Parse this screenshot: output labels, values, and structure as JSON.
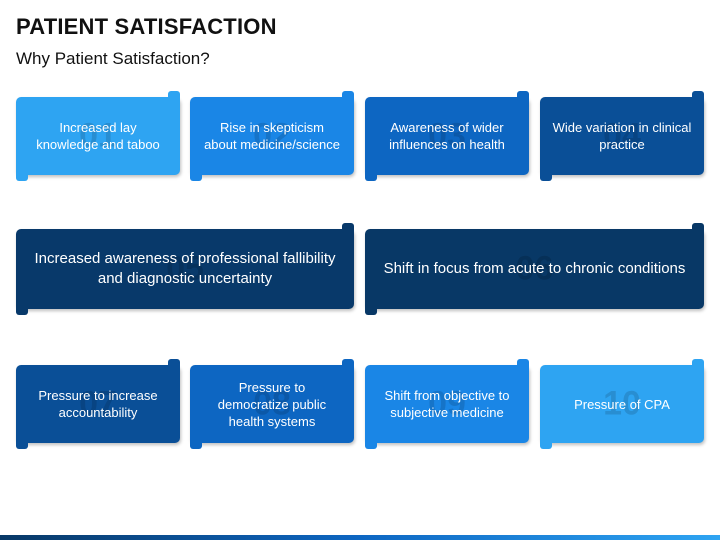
{
  "header": {
    "title": "PATIENT SATISFACTION",
    "subtitle": "Why Patient Satisfaction?"
  },
  "cards": [
    {
      "number": "01",
      "label": "Increased lay knowledge and taboo",
      "color": "#2ea4f2"
    },
    {
      "number": "02",
      "label": "Rise in skepticism about medicine/science",
      "color": "#1a86e6"
    },
    {
      "number": "03",
      "label": "Awareness of wider influences on health",
      "color": "#0d66c2"
    },
    {
      "number": "04",
      "label": "Wide variation in clinical practice",
      "color": "#0a4f97"
    },
    {
      "number": "05",
      "label": "Increased awareness of professional fallibility and diagnostic uncertainty",
      "color": "#08396a"
    },
    {
      "number": "06",
      "label": "Shift in focus from acute to chronic conditions",
      "color": "#083866"
    },
    {
      "number": "07",
      "label": "Pressure to increase accountability",
      "color": "#0a4f97"
    },
    {
      "number": "08",
      "label": "Pressure to democratize public health systems",
      "color": "#0d66c2"
    },
    {
      "number": "09",
      "label": "Shift from objective to subjective medicine",
      "color": "#1a86e6"
    },
    {
      "number": "10",
      "label": "Pressure of CPA",
      "color": "#2ea4f2"
    }
  ]
}
